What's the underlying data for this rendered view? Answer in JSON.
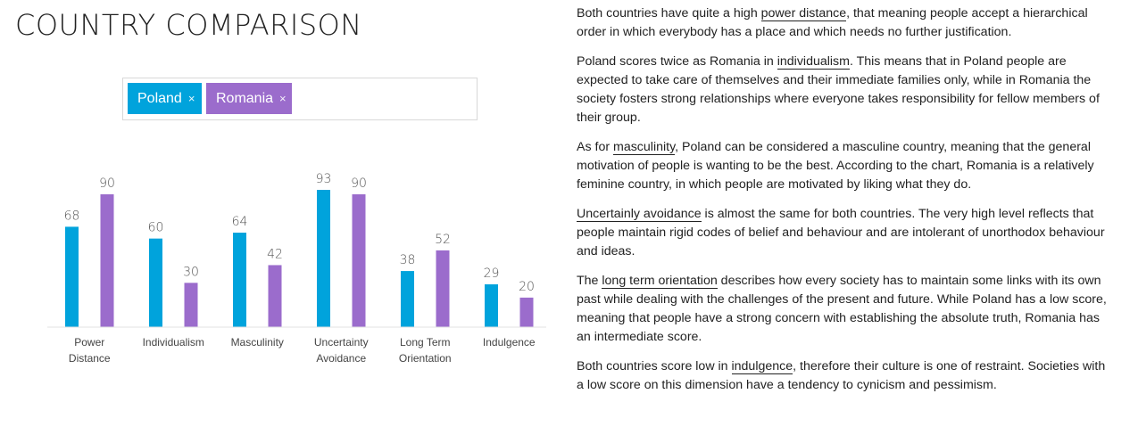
{
  "header": {
    "title": "COUNTRY COMPARISON"
  },
  "selector": {
    "tags": [
      {
        "label": "Poland",
        "remove": "×",
        "color": "#00a3dc"
      },
      {
        "label": "Romania",
        "remove": "×",
        "color": "#9b6ccc"
      }
    ]
  },
  "chart_data": {
    "type": "bar",
    "title": "",
    "xlabel": "",
    "ylabel": "",
    "ylim": [
      0,
      100
    ],
    "grid": false,
    "categories": [
      [
        "Power",
        "Distance"
      ],
      [
        "Individualism"
      ],
      [
        "Masculinity"
      ],
      [
        "Uncertainty",
        "Avoidance"
      ],
      [
        "Long Term",
        "Orientation"
      ],
      [
        "Indulgence"
      ]
    ],
    "series": [
      {
        "name": "Poland",
        "color": "#00a3dc",
        "values": [
          68,
          60,
          64,
          93,
          38,
          29
        ]
      },
      {
        "name": "Romania",
        "color": "#9b6ccc",
        "values": [
          90,
          30,
          42,
          90,
          52,
          20
        ]
      }
    ]
  },
  "text": {
    "p1": {
      "before": "Both countries have quite a high ",
      "term": "power distance",
      "after": ", that meaning people accept a hierarchical order in which everybody has a place and which needs no further justification."
    },
    "p2": {
      "before": "Poland scores twice as Romania in ",
      "term": "individualism",
      "after": ". This means that in Poland people are expected to take care of themselves and their immediate families only, while in Romania the society fosters strong relationships where everyone takes responsibility for fellow members of their group."
    },
    "p3": {
      "before": "As for ",
      "term": "masculinity",
      "after": ", Poland can be considered a masculine country, meaning that the general motivation of people is wanting to be the best. According to the chart, Romania is a relatively feminine country, in which people are motivated by liking what they do."
    },
    "p4": {
      "before": "",
      "term": "Uncertainly avoidance",
      "after": " is almost the same for both countries. The very high level reflects that people maintain rigid codes of belief and behaviour and are intolerant of unorthodox behaviour and ideas."
    },
    "p5": {
      "before": "The ",
      "term": "long term orientation",
      "after": " describes how every society has to maintain some links with its own past while dealing with the challenges of the present and future. While Poland has a low score, meaning that people have a strong concern with establishing the absolute truth, Romania has an intermediate score."
    },
    "p6": {
      "before": "Both countries score low in ",
      "term": "indulgence",
      "after": ", therefore their culture is one of restraint. Societies with a low score on this dimension have a tendency to cynicism and pessimism."
    }
  }
}
